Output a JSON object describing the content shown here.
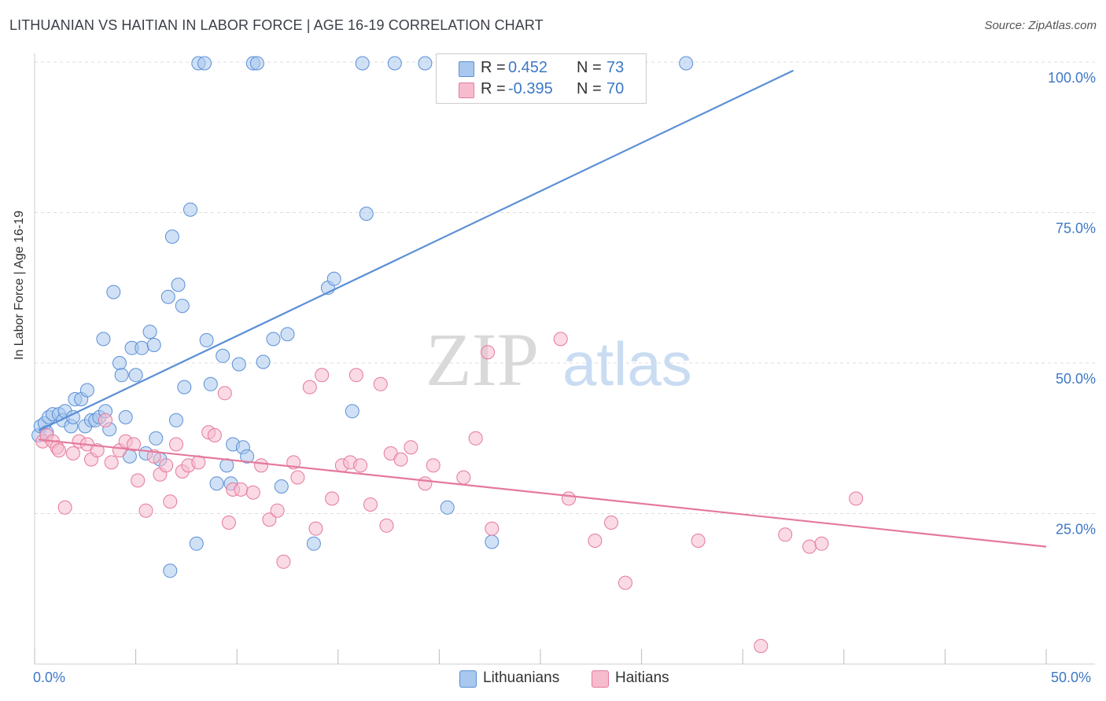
{
  "header": {
    "title": "LITHUANIAN VS HAITIAN IN LABOR FORCE | AGE 16-19 CORRELATION CHART",
    "source": "Source: ZipAtlas.com"
  },
  "watermark": {
    "zip": "ZIP",
    "atlas": "atlas"
  },
  "legend": {
    "rows": [
      {
        "r_label": "R =",
        "r_value": "0.452",
        "n_label": "N =",
        "n_value": "73",
        "color": "#a9c8ee",
        "stroke": "#5b8fd6"
      },
      {
        "r_label": "R =",
        "r_value": "-0.395",
        "n_label": "N =",
        "n_value": "70",
        "color": "#f6bccd",
        "stroke": "#e5799c"
      }
    ]
  },
  "bottom_legend": [
    {
      "label": "Lithuanians",
      "color": "#a9c8ee",
      "stroke": "#5b8fd6"
    },
    {
      "label": "Haitians",
      "color": "#f6bccd",
      "stroke": "#e5799c"
    }
  ],
  "axes": {
    "ylabel": "In Labor Force | Age 16-19",
    "x_left_label": "0.0%",
    "x_right_label": "50.0%",
    "y_tick_labels": [
      "100.0%",
      "75.0%",
      "50.0%",
      "25.0%"
    ]
  },
  "chart_data": {
    "type": "scatter",
    "title": "LITHUANIAN VS HAITIAN IN LABOR FORCE | AGE 16-19 CORRELATION CHART",
    "xlabel": "",
    "ylabel": "In Labor Force | Age 16-19",
    "xlim": [
      0,
      50
    ],
    "ylim": [
      0,
      100
    ],
    "y_ticks": [
      25,
      50,
      75,
      100
    ],
    "grid": "horizontal dashed",
    "legend_position": "top-center",
    "series": [
      {
        "name": "Lithuanians",
        "color": "#5b8fd6",
        "fill": "#a9c8ee",
        "trend": {
          "x": [
            0.2,
            37.5
          ],
          "y": [
            38.8,
            98.6
          ]
        },
        "points": [
          [
            0.2,
            38
          ],
          [
            0.3,
            39.5
          ],
          [
            0.5,
            40
          ],
          [
            0.6,
            38.5
          ],
          [
            0.7,
            41
          ],
          [
            0.9,
            41.5
          ],
          [
            1.2,
            41.5
          ],
          [
            1.4,
            40.5
          ],
          [
            1.5,
            42
          ],
          [
            1.8,
            39.5
          ],
          [
            1.9,
            41
          ],
          [
            2.0,
            44
          ],
          [
            2.3,
            44
          ],
          [
            2.5,
            39.5
          ],
          [
            2.6,
            45.5
          ],
          [
            2.8,
            40.5
          ],
          [
            3.0,
            40.5
          ],
          [
            3.2,
            41
          ],
          [
            3.4,
            54
          ],
          [
            3.5,
            42
          ],
          [
            3.7,
            39
          ],
          [
            3.9,
            61.8
          ],
          [
            4.2,
            50
          ],
          [
            4.3,
            48
          ],
          [
            4.5,
            41
          ],
          [
            4.7,
            34.5
          ],
          [
            4.8,
            52.5
          ],
          [
            5.0,
            48
          ],
          [
            5.3,
            52.5
          ],
          [
            5.5,
            35
          ],
          [
            5.7,
            55.2
          ],
          [
            5.9,
            53
          ],
          [
            6.0,
            37.5
          ],
          [
            6.2,
            34
          ],
          [
            6.6,
            61
          ],
          [
            6.7,
            15.5
          ],
          [
            6.8,
            71
          ],
          [
            7.0,
            40.5
          ],
          [
            7.1,
            63
          ],
          [
            7.3,
            59.5
          ],
          [
            7.4,
            46
          ],
          [
            7.7,
            75.5
          ],
          [
            8.0,
            20
          ],
          [
            8.1,
            99.8
          ],
          [
            8.4,
            99.8
          ],
          [
            8.5,
            53.8
          ],
          [
            8.7,
            46.5
          ],
          [
            9.0,
            30
          ],
          [
            9.3,
            51.2
          ],
          [
            9.5,
            33
          ],
          [
            9.7,
            30
          ],
          [
            9.8,
            36.5
          ],
          [
            10.1,
            49.8
          ],
          [
            10.3,
            36
          ],
          [
            10.5,
            34.5
          ],
          [
            10.8,
            99.8
          ],
          [
            11.0,
            99.8
          ],
          [
            11.3,
            50.2
          ],
          [
            11.8,
            54
          ],
          [
            12.2,
            29.5
          ],
          [
            12.5,
            54.8
          ],
          [
            13.8,
            20
          ],
          [
            14.5,
            62.5
          ],
          [
            14.8,
            64
          ],
          [
            15.7,
            42
          ],
          [
            16.2,
            99.8
          ],
          [
            16.4,
            74.8
          ],
          [
            17.8,
            99.8
          ],
          [
            19.3,
            99.8
          ],
          [
            20.4,
            26
          ],
          [
            20.9,
            99.8
          ],
          [
            22.6,
            20.3
          ],
          [
            32.2,
            99.8
          ]
        ]
      },
      {
        "name": "Haitians",
        "color": "#e5799c",
        "fill": "#f6bccd",
        "trend": {
          "x": [
            0.2,
            50
          ],
          "y": [
            37.3,
            19.5
          ]
        },
        "points": [
          [
            0.4,
            37
          ],
          [
            0.6,
            38
          ],
          [
            0.9,
            37
          ],
          [
            1.1,
            36
          ],
          [
            1.2,
            35.5
          ],
          [
            1.5,
            26
          ],
          [
            1.9,
            35
          ],
          [
            2.2,
            37
          ],
          [
            2.6,
            36.5
          ],
          [
            2.8,
            34
          ],
          [
            3.1,
            35.5
          ],
          [
            3.5,
            40.5
          ],
          [
            3.8,
            33.5
          ],
          [
            4.2,
            35.5
          ],
          [
            4.5,
            37
          ],
          [
            4.9,
            36.5
          ],
          [
            5.1,
            30.5
          ],
          [
            5.5,
            25.5
          ],
          [
            5.9,
            34.5
          ],
          [
            6.2,
            31.5
          ],
          [
            6.5,
            33
          ],
          [
            6.7,
            27
          ],
          [
            7.0,
            36.5
          ],
          [
            7.3,
            32
          ],
          [
            7.6,
            33
          ],
          [
            8.1,
            33.5
          ],
          [
            8.6,
            38.5
          ],
          [
            8.9,
            38
          ],
          [
            9.4,
            45
          ],
          [
            9.6,
            23.5
          ],
          [
            9.8,
            29
          ],
          [
            10.2,
            29
          ],
          [
            10.8,
            28.5
          ],
          [
            11.2,
            33
          ],
          [
            11.6,
            24
          ],
          [
            12.0,
            25.5
          ],
          [
            12.3,
            17
          ],
          [
            12.8,
            33.5
          ],
          [
            13.0,
            31
          ],
          [
            13.6,
            46
          ],
          [
            13.9,
            22.5
          ],
          [
            14.2,
            48
          ],
          [
            14.7,
            27.5
          ],
          [
            15.2,
            33
          ],
          [
            15.6,
            33.5
          ],
          [
            15.9,
            48
          ],
          [
            16.1,
            33
          ],
          [
            16.6,
            26.5
          ],
          [
            17.1,
            46.5
          ],
          [
            17.4,
            23
          ],
          [
            17.6,
            35
          ],
          [
            18.1,
            34
          ],
          [
            18.6,
            36
          ],
          [
            19.3,
            30
          ],
          [
            19.7,
            33
          ],
          [
            21.2,
            31
          ],
          [
            21.8,
            37.5
          ],
          [
            22.4,
            51.8
          ],
          [
            22.6,
            22.5
          ],
          [
            26.0,
            54
          ],
          [
            26.4,
            27.5
          ],
          [
            27.7,
            20.5
          ],
          [
            28.5,
            23.5
          ],
          [
            29.2,
            13.5
          ],
          [
            32.8,
            20.5
          ],
          [
            35.9,
            3
          ],
          [
            37.1,
            21.5
          ],
          [
            38.3,
            19.5
          ],
          [
            38.9,
            20
          ],
          [
            40.6,
            27.5
          ]
        ]
      }
    ]
  }
}
